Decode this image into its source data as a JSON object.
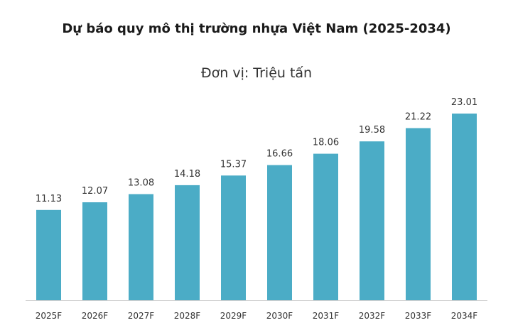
{
  "chart_data": {
    "type": "bar",
    "title": "Dự báo quy mô thị trường nhựa Việt Nam (2025-2034)",
    "subtitle": "Đơn vị: Triệu tấn",
    "xlabel": "",
    "ylabel": "",
    "categories": [
      "2025F",
      "2026F",
      "2027F",
      "2028F",
      "2029F",
      "2030F",
      "2031F",
      "2032F",
      "2033F",
      "2034F"
    ],
    "values": [
      11.13,
      12.07,
      13.08,
      14.18,
      15.37,
      16.66,
      18.06,
      19.58,
      21.22,
      23.01
    ],
    "data_labels": [
      "11.13",
      "12.07",
      "13.08",
      "14.18",
      "15.37",
      "16.66",
      "18.06",
      "19.58",
      "21.22",
      "23.01"
    ],
    "ylim": [
      0,
      23.01
    ],
    "grid": false,
    "legend": "none",
    "colors": {
      "bar": "#4bacc6",
      "axis": "#d0d0d0"
    }
  }
}
